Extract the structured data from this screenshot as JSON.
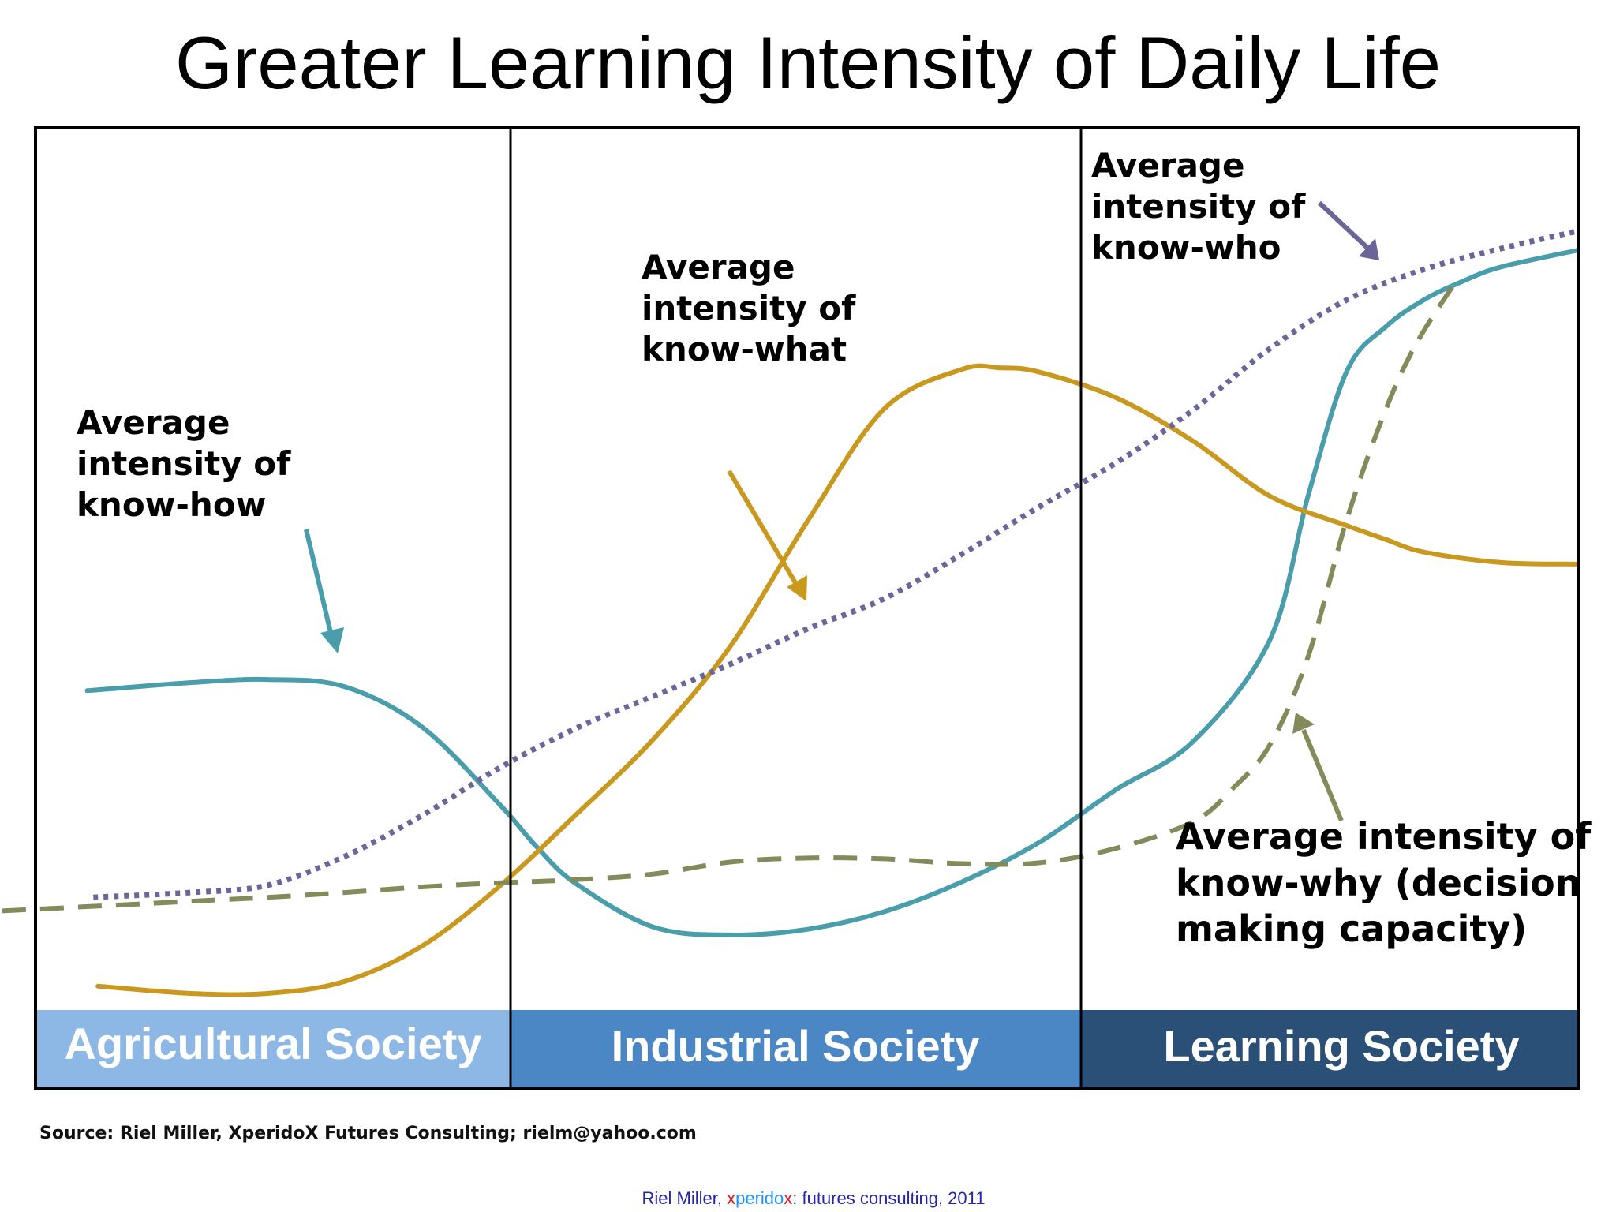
{
  "title": "Greater Learning Intensity of Daily Life",
  "source": "Source: Riel Miller, XperidoX Futures Consulting; rielm@yahoo.com",
  "footer": {
    "author": "Riel Miller, ",
    "brand_x1": "x",
    "brand_mid": "perido",
    "brand_x2": "x",
    "rest": ": futures consulting, 2011"
  },
  "colors": {
    "know_how": "#4a9dab",
    "know_what": "#c9991f",
    "know_who": "#6a6699",
    "know_why": "#858a5a",
    "band_agricultural": "#8db8e6",
    "band_industrial": "#4b86c5",
    "band_learning": "#2b5077",
    "footer_text": "#2525a5",
    "footer_x": "#e01c1c",
    "footer_perido": "#1e90ff"
  },
  "chart_data": {
    "type": "line",
    "title": "Greater Learning Intensity of Daily Life",
    "xlabel": "",
    "ylabel": "",
    "x_unit": "relative position across the three society periods (0 = left edge, 100 = right edge)",
    "y_unit": "relative intensity (0 = bottom, 100 = top of plot area)",
    "xlim": [
      0,
      100
    ],
    "ylim": [
      0,
      100
    ],
    "grid": false,
    "legend": "none (series labelled by on-chart annotations)",
    "periods": [
      {
        "label": "Agricultural Society",
        "x_start": 0,
        "x_end": 30.8
      },
      {
        "label": "Industrial Society",
        "x_start": 30.8,
        "x_end": 67.9
      },
      {
        "label": "Learning Society",
        "x_start": 67.9,
        "x_end": 100
      }
    ],
    "series": [
      {
        "name": "Average intensity of know-how",
        "style": "solid",
        "color": "#4a9dab",
        "x": [
          3.3,
          10,
          15,
          20,
          25,
          30,
          32.5,
          35,
          40,
          45,
          50,
          55,
          60,
          65,
          70,
          75,
          80,
          82.5,
          85,
          87.5,
          90,
          92.5,
          95,
          100
        ],
        "y": [
          38.1,
          39.1,
          39.5,
          38.6,
          33.6,
          24.0,
          18.5,
          14.0,
          8.6,
          7.6,
          8.3,
          10.5,
          14.2,
          19.1,
          25.7,
          31.7,
          44.4,
          62.5,
          78.0,
          83.5,
          86.9,
          89.2,
          91.0,
          93.1
        ]
      },
      {
        "name": "Average intensity of know-what",
        "style": "solid",
        "color": "#c9991f",
        "x": [
          4,
          10,
          15,
          20,
          25,
          30,
          35,
          40,
          45,
          50,
          55,
          60,
          62.5,
          65,
          70,
          75,
          80,
          85,
          87.5,
          90,
          95,
          100
        ],
        "y": [
          1.2,
          0.3,
          0.3,
          1.8,
          6.2,
          13.6,
          22.6,
          32.0,
          43.6,
          59.2,
          73.3,
          78.2,
          78.4,
          77.9,
          74.7,
          69.3,
          62.4,
          58.7,
          57.0,
          55.4,
          54.1,
          53.9
        ]
      },
      {
        "name": "Average intensity of know-who",
        "style": "dotted",
        "color": "#6a6699",
        "x": [
          3.7,
          10,
          15,
          20,
          25,
          30,
          35,
          40,
          45,
          50,
          55,
          60,
          65,
          70,
          75,
          80,
          85,
          90,
          95,
          100
        ],
        "y": [
          12.3,
          12.9,
          13.8,
          17.4,
          22.5,
          28.4,
          33.4,
          37.4,
          41.4,
          45.8,
          49.6,
          55.1,
          61.0,
          66.5,
          73.1,
          80.8,
          86.9,
          90.7,
          93.3,
          95.5
        ]
      },
      {
        "name": "Average intensity of know-why (decision making capacity)",
        "style": "dashed",
        "color": "#858a5a",
        "x": [
          -2.2,
          5,
          10,
          15,
          20,
          25,
          30,
          35,
          40,
          45,
          50,
          55,
          60,
          65,
          70,
          75,
          77.5,
          80,
          82.5,
          85,
          87.5,
          89.5,
          92
        ],
        "y": [
          10.6,
          11.3,
          11.8,
          12.3,
          12.9,
          13.6,
          14.1,
          14.5,
          15.2,
          16.7,
          17.2,
          17.1,
          16.5,
          16.6,
          18.4,
          21.7,
          25.7,
          31.3,
          42.4,
          59.5,
          73.1,
          81.4,
          89.0
        ]
      }
    ],
    "annotations": [
      {
        "text": [
          "Average",
          "intensity of",
          "know-how"
        ],
        "target_series": "Average intensity of know-how"
      },
      {
        "text": [
          "Average",
          "intensity of",
          "know-what"
        ],
        "target_series": "Average intensity of know-what"
      },
      {
        "text": [
          "Average",
          "intensity of",
          "know-who"
        ],
        "target_series": "Average intensity of know-who"
      },
      {
        "text": [
          "Average intensity of",
          "know-why (decision",
          "making capacity)"
        ],
        "target_series": "Average intensity of know-why (decision making capacity)"
      }
    ]
  }
}
